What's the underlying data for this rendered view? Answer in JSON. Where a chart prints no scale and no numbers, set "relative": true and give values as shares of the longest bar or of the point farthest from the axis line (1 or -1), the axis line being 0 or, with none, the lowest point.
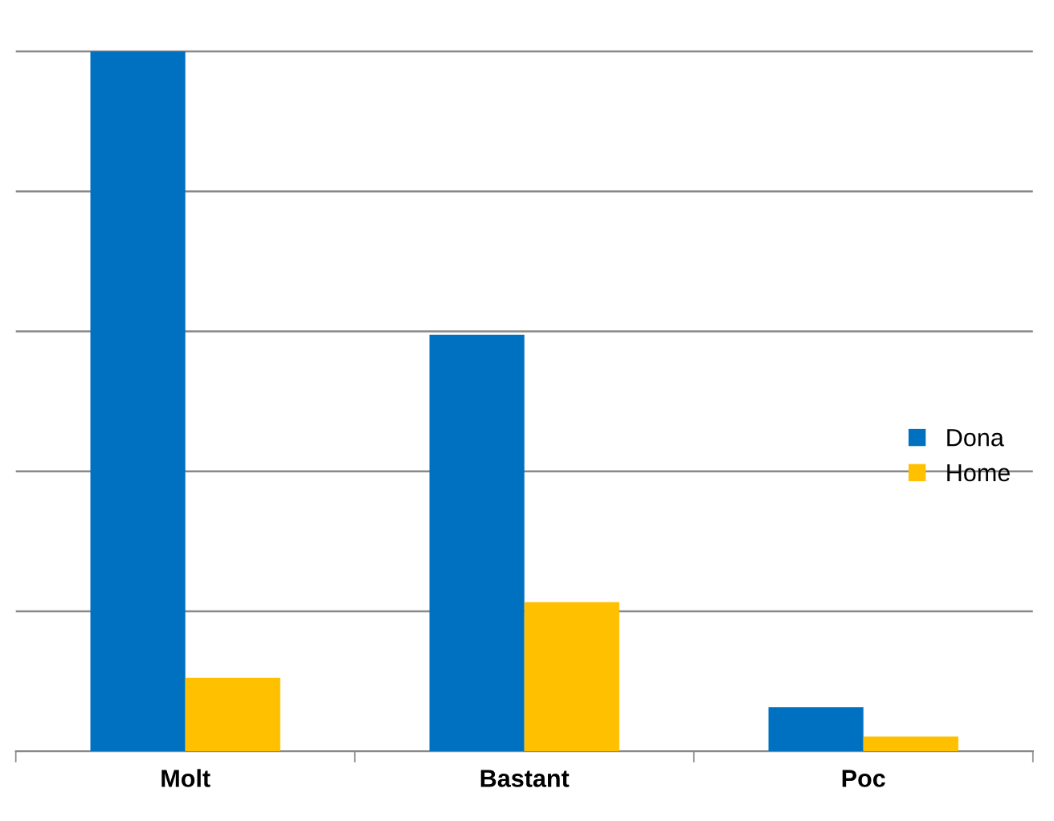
{
  "chart_data": {
    "type": "bar",
    "categories": [
      "Molt",
      "Bastant",
      "Poc"
    ],
    "relative": true,
    "grid": "y",
    "legend": "right",
    "series": [
      {
        "name": "Dona",
        "color": "#0070c0",
        "values": [
          1,
          0.595,
          0.063
        ]
      },
      {
        "name": "Home",
        "color": "#ffc000",
        "values": [
          0.105,
          0.213,
          0.021
        ]
      }
    ]
  }
}
